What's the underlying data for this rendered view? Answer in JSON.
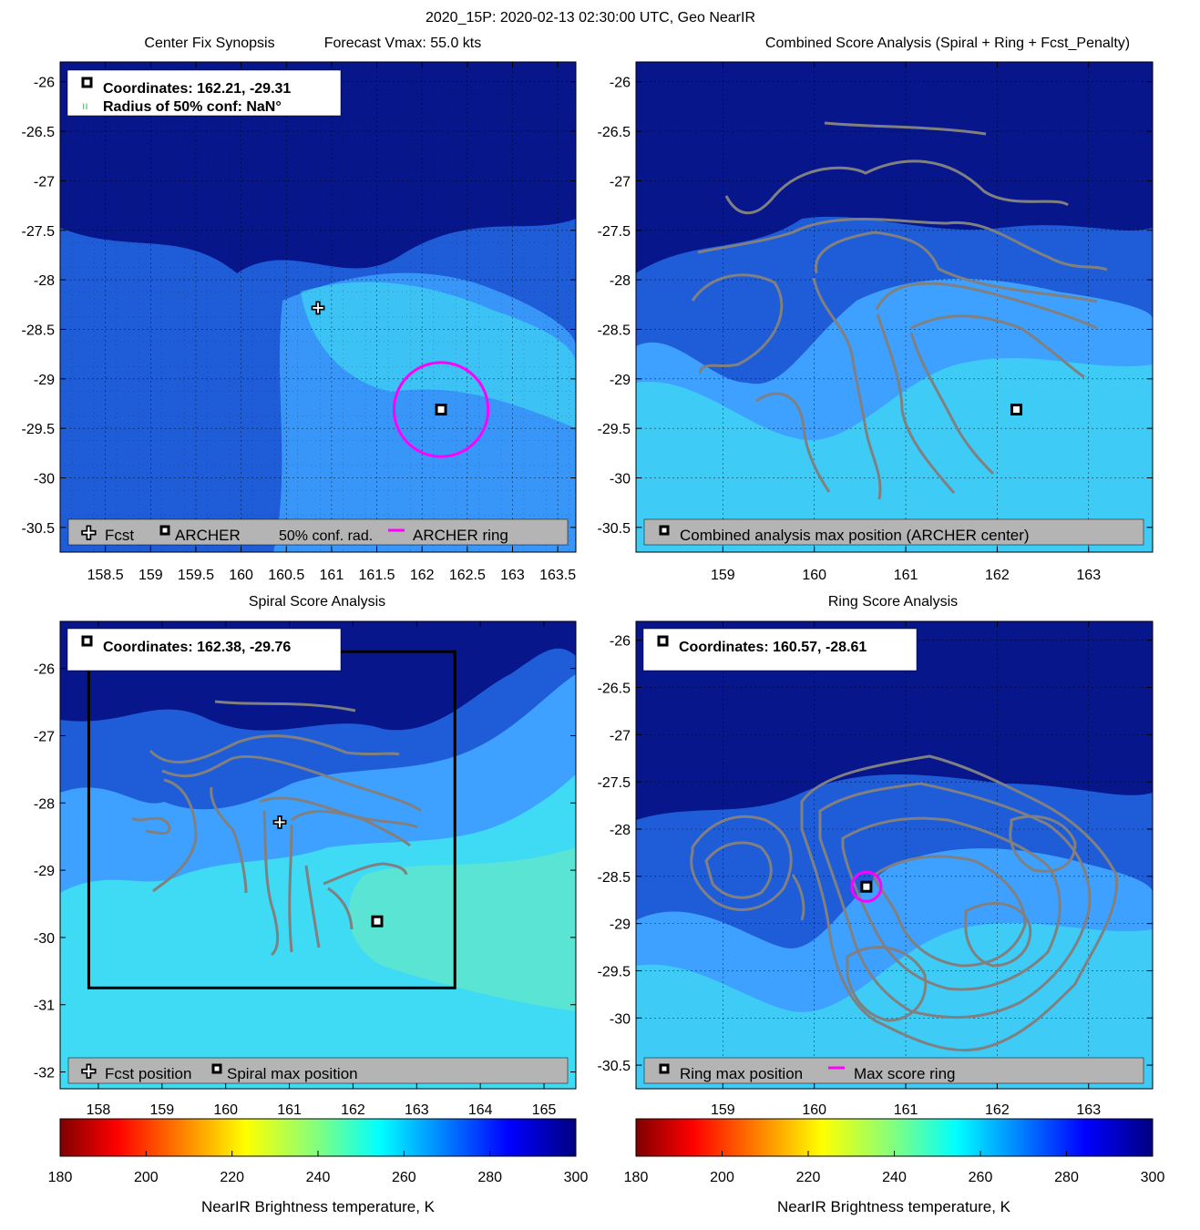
{
  "figure_title": "2020_15P: 2020-02-13 02:30:00 UTC, Geo NearIR",
  "colors": {
    "dark_blue": "#08168c",
    "mid_blue": "#1f5cd8",
    "light_blue": "#3ea0ff",
    "cyan": "#40e8f0",
    "light_green": "#7df0b0",
    "contour": "#808080",
    "ring": "#ff00ff",
    "legend_bg": "#b4b4b4"
  },
  "chart_data": [
    {
      "type": "heatmap",
      "panel": "synopsis",
      "title": "Center Fix Synopsis",
      "subtitle": "Forecast Vmax: 55.0 kts",
      "xlim": [
        158,
        163.7
      ],
      "ylim": [
        -30.75,
        -25.8
      ],
      "xticks": [
        158.5,
        159,
        159.5,
        160,
        160.5,
        161,
        161.5,
        162,
        162.5,
        163,
        163.5
      ],
      "xtick_labels": [
        "158.5",
        "159",
        "159.5",
        "160",
        "160.5",
        "161",
        "161.5",
        "162",
        "162.5",
        "163",
        "163.5"
      ],
      "yticks": [
        -26,
        -26.5,
        -27,
        -27.5,
        -28,
        -28.5,
        -29,
        -29.5,
        -30,
        -30.5
      ],
      "ytick_labels": [
        "-26",
        "-26.5",
        "-27",
        "-27.5",
        "-28",
        "-28.5",
        "-29",
        "-29.5",
        "-30",
        "-30.5"
      ],
      "grid": true,
      "info_box": {
        "line1": "Coordinates: 162.21, -29.31",
        "line2": "Radius of 50% conf: NaN°"
      },
      "legend": [
        "Fcst",
        "ARCHER",
        "50% conf. rad.",
        "ARCHER ring"
      ],
      "points": {
        "fcst": {
          "x": 160.85,
          "y": -28.28
        },
        "archer": {
          "x": 162.21,
          "y": -29.31
        },
        "ring": {
          "x": 162.21,
          "y": -29.31,
          "radius_deg": 0.52
        }
      }
    },
    {
      "type": "heatmap",
      "panel": "combined",
      "title": "Combined Score Analysis (Spiral + Ring + Fcst_Penalty)",
      "xlim": [
        158.05,
        163.7
      ],
      "ylim": [
        -30.75,
        -25.8
      ],
      "xticks": [
        159,
        160,
        161,
        162,
        163
      ],
      "xtick_labels": [
        "159",
        "160",
        "161",
        "162",
        "163"
      ],
      "yticks": [
        -26,
        -26.5,
        -27,
        -27.5,
        -28,
        -28.5,
        -29,
        -29.5,
        -30,
        -30.5
      ],
      "ytick_labels": [
        "-26",
        "-26.5",
        "-27",
        "-27.5",
        "-28",
        "-28.5",
        "-29",
        "-29.5",
        "-30",
        "-30.5"
      ],
      "grid": true,
      "legend": [
        "Combined analysis max position (ARCHER center)"
      ],
      "points": {
        "archer": {
          "x": 162.21,
          "y": -29.31
        }
      }
    },
    {
      "type": "heatmap",
      "panel": "spiral",
      "title": "Spiral Score Analysis",
      "xlim": [
        157.4,
        165.5
      ],
      "ylim": [
        -32.25,
        -25.3
      ],
      "xticks": [
        158,
        159,
        160,
        161,
        162,
        163,
        164,
        165
      ],
      "xtick_labels": [
        "158",
        "159",
        "160",
        "161",
        "162",
        "163",
        "164",
        "165"
      ],
      "yticks": [
        -26,
        -27,
        -28,
        -29,
        -30,
        -31,
        -32
      ],
      "ytick_labels": [
        "-26",
        "-27",
        "-28",
        "-29",
        "-30",
        "-31",
        "-32"
      ],
      "grid": false,
      "info_box": {
        "line1": "Coordinates: 162.38, -29.76"
      },
      "legend": [
        "Fcst position",
        "Spiral max position"
      ],
      "points": {
        "fcst": {
          "x": 160.85,
          "y": -28.28
        },
        "spiral": {
          "x": 162.38,
          "y": -29.76
        }
      },
      "search_box": {
        "x0": 157.85,
        "x1": 163.6,
        "y0": -30.75,
        "y1": -25.75
      }
    },
    {
      "type": "heatmap",
      "panel": "ring",
      "title": "Ring Score Analysis",
      "xlim": [
        158.05,
        163.7
      ],
      "ylim": [
        -30.75,
        -25.8
      ],
      "xticks": [
        159,
        160,
        161,
        162,
        163
      ],
      "xtick_labels": [
        "159",
        "160",
        "161",
        "162",
        "163"
      ],
      "yticks": [
        -26,
        -26.5,
        -27,
        -27.5,
        -28,
        -28.5,
        -29,
        -29.5,
        -30,
        -30.5
      ],
      "ytick_labels": [
        "-26",
        "-26.5",
        "-27",
        "-27.5",
        "-28",
        "-28.5",
        "-29",
        "-29.5",
        "-30",
        "-30.5"
      ],
      "grid": true,
      "info_box": {
        "line1": "Coordinates: 160.57, -28.61"
      },
      "legend": [
        "Ring max position",
        "Max score ring"
      ],
      "points": {
        "ring_max": {
          "x": 160.57,
          "y": -28.61
        },
        "ring": {
          "x": 160.57,
          "y": -28.61,
          "radius_deg": 0.16
        }
      }
    }
  ],
  "colorbars": [
    {
      "min": 180,
      "max": 300,
      "ticks": [
        "180",
        "200",
        "220",
        "240",
        "260",
        "280",
        "300"
      ],
      "label": "NearIR Brightness temperature, K"
    },
    {
      "min": 180,
      "max": 300,
      "ticks": [
        "180",
        "200",
        "220",
        "240",
        "260",
        "280",
        "300"
      ],
      "label": "NearIR Brightness temperature, K"
    }
  ]
}
